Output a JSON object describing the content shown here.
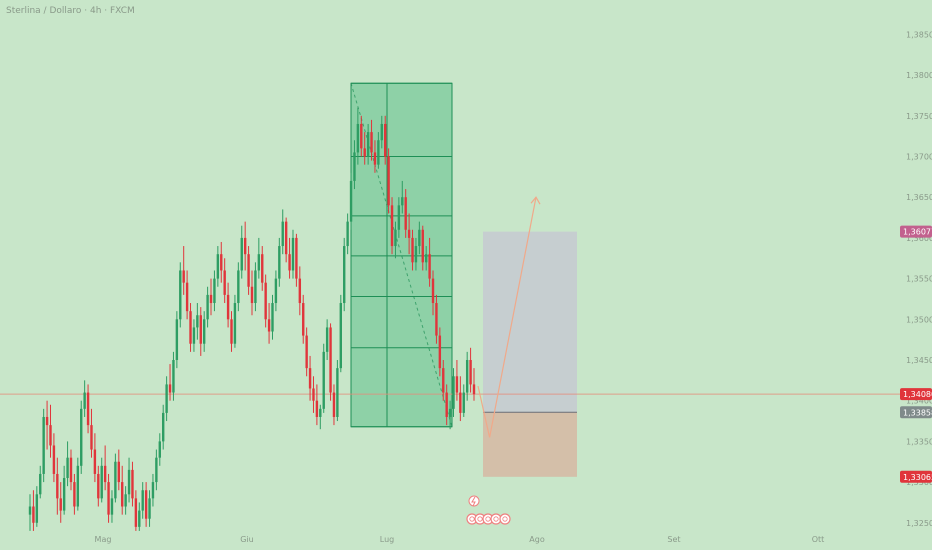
{
  "header": {
    "title": "Sterlina / Dollaro · 4h · FXCM"
  },
  "colors": {
    "background": "#c8e6c9",
    "up": "#2e9d63",
    "down": "#e0353b",
    "fib_zone": "#5fbf8a",
    "fib_line": "#1e8f56",
    "target_zone": "#c6c9d1",
    "stop_zone": "#d6b7a3",
    "hline": "#e58c7a",
    "path": "#f0a98a",
    "badge_pink": "#c2618e",
    "badge_red": "#e0353b",
    "badge_dark": "#7f8a8a",
    "badge_salmon": "#ef8080"
  },
  "chart_data": {
    "type": "candlestick",
    "title": "Sterlina / Dollaro · 4h · FXCM",
    "x_tick_labels": [
      "Mag",
      "Giu",
      "Lug",
      "Ago",
      "Set",
      "Ott"
    ],
    "y_tick_labels": [
      "1,38500",
      "1,38000",
      "1,37500",
      "1,37000",
      "1,36500",
      "1,36000",
      "1,35500",
      "1,35000",
      "1,34500",
      "1,34000",
      "1,33500",
      "1,33000",
      "1,32500"
    ],
    "y_ticks": [
      1.385,
      1.38,
      1.375,
      1.37,
      1.365,
      1.36,
      1.355,
      1.35,
      1.345,
      1.34,
      1.335,
      1.33,
      1.325
    ],
    "ylim": [
      1.3235,
      1.388
    ],
    "price_badges": [
      {
        "label": "1,36077",
        "value": 1.36077,
        "color": "pink"
      },
      {
        "label": "1,34080",
        "value": 1.3408,
        "color": "red"
      },
      {
        "label": "1,33858",
        "value": 1.33858,
        "color": "dark"
      },
      {
        "label": "1,33065",
        "value": 1.33065,
        "color": "red"
      }
    ],
    "current_price": 1.3408,
    "fib_levels": [
      1.379,
      1.37,
      1.3627,
      1.3578,
      1.3528,
      1.3465,
      1.3368
    ],
    "trade": {
      "entry": 1.33858,
      "target": 1.36077,
      "stop": 1.33065
    },
    "path": [
      [
        0,
        1.3418
      ],
      [
        0.5,
        1.3355
      ],
      [
        2.5,
        1.365
      ]
    ],
    "candles": [
      [
        1.326,
        1.3285,
        1.327,
        1.324
      ],
      [
        1.327,
        1.329,
        1.325,
        1.324
      ],
      [
        1.325,
        1.3295,
        1.3285,
        1.3245
      ],
      [
        1.3285,
        1.332,
        1.331,
        1.328
      ],
      [
        1.331,
        1.339,
        1.338,
        1.33
      ],
      [
        1.338,
        1.34,
        1.337,
        1.334
      ],
      [
        1.337,
        1.3395,
        1.3345,
        1.333
      ],
      [
        1.3345,
        1.336,
        1.331,
        1.33
      ],
      [
        1.331,
        1.333,
        1.328,
        1.326
      ],
      [
        1.328,
        1.33,
        1.3265,
        1.325
      ],
      [
        1.3265,
        1.332,
        1.3305,
        1.326
      ],
      [
        1.3305,
        1.335,
        1.333,
        1.3295
      ],
      [
        1.333,
        1.334,
        1.33,
        1.329
      ],
      [
        1.33,
        1.331,
        1.327,
        1.326
      ],
      [
        1.327,
        1.333,
        1.332,
        1.3265
      ],
      [
        1.332,
        1.34,
        1.339,
        1.331
      ],
      [
        1.339,
        1.3425,
        1.341,
        1.338
      ],
      [
        1.341,
        1.342,
        1.337,
        1.336
      ],
      [
        1.337,
        1.339,
        1.334,
        1.333
      ],
      [
        1.334,
        1.336,
        1.331,
        1.33
      ],
      [
        1.331,
        1.332,
        1.328,
        1.327
      ],
      [
        1.328,
        1.333,
        1.332,
        1.3275
      ],
      [
        1.332,
        1.3345,
        1.33,
        1.329
      ],
      [
        1.33,
        1.331,
        1.326,
        1.325
      ],
      [
        1.326,
        1.329,
        1.328,
        1.325
      ],
      [
        1.328,
        1.3335,
        1.3325,
        1.3275
      ],
      [
        1.3325,
        1.334,
        1.33,
        1.329
      ],
      [
        1.33,
        1.332,
        1.327,
        1.326
      ],
      [
        1.327,
        1.3295,
        1.3285,
        1.326
      ],
      [
        1.3285,
        1.333,
        1.3315,
        1.3275
      ],
      [
        1.3315,
        1.3325,
        1.328,
        1.327
      ],
      [
        1.328,
        1.329,
        1.3245,
        1.324
      ],
      [
        1.3245,
        1.3275,
        1.3265,
        1.324
      ],
      [
        1.3265,
        1.33,
        1.329,
        1.3255
      ],
      [
        1.329,
        1.33,
        1.3255,
        1.3245
      ],
      [
        1.3255,
        1.329,
        1.328,
        1.3245
      ],
      [
        1.328,
        1.331,
        1.33,
        1.327
      ],
      [
        1.33,
        1.334,
        1.333,
        1.329
      ],
      [
        1.333,
        1.336,
        1.335,
        1.332
      ],
      [
        1.335,
        1.3395,
        1.3385,
        1.334
      ],
      [
        1.3385,
        1.343,
        1.342,
        1.3375
      ],
      [
        1.342,
        1.3445,
        1.341,
        1.34
      ],
      [
        1.341,
        1.346,
        1.345,
        1.34
      ],
      [
        1.345,
        1.351,
        1.35,
        1.344
      ],
      [
        1.35,
        1.357,
        1.356,
        1.349
      ],
      [
        1.356,
        1.359,
        1.3545,
        1.353
      ],
      [
        1.3545,
        1.356,
        1.351,
        1.35
      ],
      [
        1.351,
        1.352,
        1.347,
        1.346
      ],
      [
        1.347,
        1.35,
        1.349,
        1.346
      ],
      [
        1.349,
        1.352,
        1.3505,
        1.3475
      ],
      [
        1.3505,
        1.3515,
        1.347,
        1.3455
      ],
      [
        1.347,
        1.351,
        1.35,
        1.346
      ],
      [
        1.35,
        1.354,
        1.353,
        1.349
      ],
      [
        1.353,
        1.355,
        1.352,
        1.3505
      ],
      [
        1.352,
        1.356,
        1.355,
        1.351
      ],
      [
        1.355,
        1.359,
        1.358,
        1.354
      ],
      [
        1.358,
        1.3595,
        1.356,
        1.3545
      ],
      [
        1.356,
        1.3575,
        1.353,
        1.352
      ],
      [
        1.353,
        1.3545,
        1.35,
        1.349
      ],
      [
        1.35,
        1.351,
        1.347,
        1.346
      ],
      [
        1.347,
        1.353,
        1.352,
        1.3465
      ],
      [
        1.352,
        1.357,
        1.356,
        1.351
      ],
      [
        1.356,
        1.3615,
        1.36,
        1.355
      ],
      [
        1.36,
        1.362,
        1.358,
        1.356
      ],
      [
        1.358,
        1.359,
        1.354,
        1.353
      ],
      [
        1.354,
        1.356,
        1.352,
        1.3505
      ],
      [
        1.352,
        1.357,
        1.356,
        1.351
      ],
      [
        1.356,
        1.36,
        1.358,
        1.355
      ],
      [
        1.358,
        1.359,
        1.3545,
        1.3535
      ],
      [
        1.3545,
        1.3555,
        1.35,
        1.349
      ],
      [
        1.35,
        1.352,
        1.3485,
        1.347
      ],
      [
        1.3485,
        1.353,
        1.352,
        1.3475
      ],
      [
        1.352,
        1.356,
        1.355,
        1.351
      ],
      [
        1.355,
        1.36,
        1.359,
        1.354
      ],
      [
        1.359,
        1.3635,
        1.362,
        1.358
      ],
      [
        1.362,
        1.3625,
        1.358,
        1.357
      ],
      [
        1.358,
        1.36,
        1.356,
        1.355
      ],
      [
        1.356,
        1.361,
        1.36,
        1.355
      ],
      [
        1.36,
        1.3605,
        1.355,
        1.354
      ],
      [
        1.355,
        1.3565,
        1.352,
        1.3505
      ],
      [
        1.352,
        1.353,
        1.348,
        1.347
      ],
      [
        1.348,
        1.349,
        1.344,
        1.343
      ],
      [
        1.344,
        1.3455,
        1.3415,
        1.34
      ],
      [
        1.3415,
        1.343,
        1.34,
        1.3385
      ],
      [
        1.34,
        1.342,
        1.338,
        1.337
      ],
      [
        1.338,
        1.3395,
        1.339,
        1.3365
      ],
      [
        1.339,
        1.347,
        1.346,
        1.3385
      ],
      [
        1.346,
        1.35,
        1.349,
        1.345
      ],
      [
        1.349,
        1.3495,
        1.341,
        1.34
      ],
      [
        1.341,
        1.342,
        1.338,
        1.337
      ],
      [
        1.338,
        1.345,
        1.344,
        1.3375
      ],
      [
        1.344,
        1.353,
        1.352,
        1.3435
      ],
      [
        1.352,
        1.36,
        1.359,
        1.351
      ],
      [
        1.359,
        1.363,
        1.362,
        1.358
      ],
      [
        1.362,
        1.368,
        1.367,
        1.361
      ],
      [
        1.367,
        1.372,
        1.3705,
        1.366
      ],
      [
        1.3705,
        1.376,
        1.374,
        1.369
      ],
      [
        1.374,
        1.375,
        1.371,
        1.37
      ],
      [
        1.371,
        1.373,
        1.37,
        1.369
      ],
      [
        1.37,
        1.374,
        1.373,
        1.369
      ],
      [
        1.373,
        1.3745,
        1.3705,
        1.3695
      ],
      [
        1.3705,
        1.372,
        1.369,
        1.368
      ],
      [
        1.369,
        1.373,
        1.372,
        1.3685
      ],
      [
        1.372,
        1.375,
        1.374,
        1.371
      ],
      [
        1.374,
        1.375,
        1.37,
        1.369
      ],
      [
        1.37,
        1.371,
        1.364,
        1.363
      ],
      [
        1.364,
        1.365,
        1.359,
        1.358
      ],
      [
        1.359,
        1.362,
        1.361,
        1.3575
      ],
      [
        1.361,
        1.365,
        1.364,
        1.36
      ],
      [
        1.364,
        1.367,
        1.365,
        1.363
      ],
      [
        1.365,
        1.366,
        1.361,
        1.36
      ],
      [
        1.361,
        1.363,
        1.36,
        1.358
      ],
      [
        1.36,
        1.361,
        1.357,
        1.356
      ],
      [
        1.357,
        1.36,
        1.359,
        1.356
      ],
      [
        1.359,
        1.362,
        1.361,
        1.358
      ],
      [
        1.361,
        1.3615,
        1.357,
        1.356
      ],
      [
        1.357,
        1.359,
        1.358,
        1.356
      ],
      [
        1.358,
        1.36,
        1.355,
        1.354
      ],
      [
        1.355,
        1.356,
        1.352,
        1.3505
      ],
      [
        1.352,
        1.353,
        1.348,
        1.347
      ],
      [
        1.348,
        1.349,
        1.344,
        1.343
      ],
      [
        1.344,
        1.345,
        1.341,
        1.34
      ],
      [
        1.341,
        1.342,
        1.338,
        1.337
      ],
      [
        1.338,
        1.34,
        1.339,
        1.3365
      ],
      [
        1.339,
        1.344,
        1.343,
        1.338
      ],
      [
        1.343,
        1.345,
        1.341,
        1.34
      ],
      [
        1.341,
        1.343,
        1.3385,
        1.3375
      ],
      [
        1.3385,
        1.342,
        1.341,
        1.338
      ],
      [
        1.341,
        1.346,
        1.345,
        1.34
      ],
      [
        1.345,
        1.3465,
        1.342,
        1.341
      ],
      [
        1.342,
        1.344,
        1.3408,
        1.34
      ]
    ]
  },
  "events": {
    "lightning_icon": "lightning-icon",
    "calendar_icons": [
      "flag-icon-1",
      "flag-icon-2",
      "flag-icon-3",
      "flag-icon-4",
      "flag-icon-5"
    ]
  }
}
